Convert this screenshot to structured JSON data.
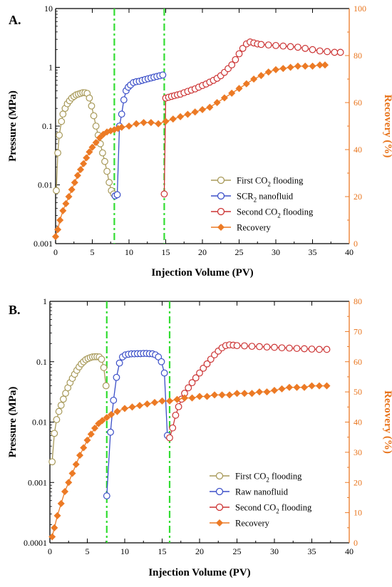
{
  "colors": {
    "first_co2": "#a89a5a",
    "nanofluid": "#3b4fc8",
    "second_co2": "#cc3333",
    "recovery": "#ec7a25",
    "divider": "#33dd33"
  },
  "chart_data": [
    {
      "type": "line",
      "panel_label": "A.",
      "xlabel": "Injection Volume (PV)",
      "ylabel_left": "Pressure (MPa)",
      "ylabel_right": "Recovery (%)",
      "xlim": [
        0,
        40
      ],
      "ylim_left": [
        0.001,
        10
      ],
      "ylim_right": [
        0,
        100
      ],
      "left_log": true,
      "x_ticks": [
        "0",
        "5",
        "10",
        "15",
        "20",
        "25",
        "30",
        "35",
        "40"
      ],
      "y_left_ticks": [
        "0.001",
        "0.01",
        "0.1",
        "1",
        "10"
      ],
      "y_right_ticks": [
        "0",
        "20",
        "40",
        "60",
        "80",
        "100"
      ],
      "dividers": [
        8.0,
        14.8
      ],
      "series": [
        {
          "name": "First CO2 flooding",
          "axis": "left",
          "marker": "circle",
          "x": [
            0.1,
            0.3,
            0.5,
            0.8,
            1.0,
            1.3,
            1.6,
            1.9,
            2.2,
            2.5,
            2.8,
            3.1,
            3.4,
            3.7,
            4.0,
            4.3,
            4.6,
            4.9,
            5.2,
            5.5,
            5.8,
            6.1,
            6.4,
            6.7,
            7.0,
            7.3,
            7.6,
            7.9
          ],
          "y": [
            0.008,
            0.035,
            0.07,
            0.12,
            0.16,
            0.2,
            0.24,
            0.27,
            0.3,
            0.32,
            0.34,
            0.35,
            0.36,
            0.37,
            0.37,
            0.36,
            0.3,
            0.22,
            0.15,
            0.1,
            0.07,
            0.05,
            0.035,
            0.025,
            0.017,
            0.011,
            0.008,
            0.007
          ]
        },
        {
          "name": "SCR2 nanofluid",
          "axis": "left",
          "marker": "circle",
          "x": [
            8.1,
            8.4,
            8.7,
            9.0,
            9.3,
            9.6,
            9.9,
            10.2,
            10.6,
            11.0,
            11.4,
            11.8,
            12.2,
            12.6,
            13.0,
            13.4,
            13.8,
            14.2,
            14.6
          ],
          "y": [
            0.0065,
            0.0068,
            0.1,
            0.16,
            0.28,
            0.4,
            0.46,
            0.5,
            0.55,
            0.57,
            0.58,
            0.6,
            0.62,
            0.64,
            0.66,
            0.68,
            0.7,
            0.72,
            0.74
          ]
        },
        {
          "name": "Second CO2 flooding",
          "axis": "left",
          "marker": "circle",
          "x": [
            14.8,
            15.0,
            15.4,
            15.8,
            16.2,
            16.6,
            17.0,
            17.5,
            18.0,
            18.5,
            19.0,
            19.5,
            20.0,
            20.5,
            21.0,
            21.5,
            22.0,
            22.5,
            23.0,
            23.5,
            24.0,
            24.5,
            25.0,
            25.5,
            26.0,
            26.5,
            27.0,
            27.5,
            28.0,
            29.0,
            30.0,
            31.0,
            32.0,
            33.0,
            34.0,
            35.0,
            36.0,
            37.0,
            38.0,
            38.8
          ],
          "y": [
            0.007,
            0.3,
            0.31,
            0.32,
            0.33,
            0.34,
            0.35,
            0.37,
            0.39,
            0.41,
            0.43,
            0.46,
            0.49,
            0.52,
            0.56,
            0.6,
            0.65,
            0.72,
            0.82,
            0.95,
            1.1,
            1.35,
            1.7,
            2.1,
            2.5,
            2.7,
            2.6,
            2.5,
            2.45,
            2.4,
            2.35,
            2.3,
            2.25,
            2.2,
            2.1,
            2.0,
            1.9,
            1.85,
            1.8,
            1.8
          ]
        },
        {
          "name": "Recovery",
          "axis": "right",
          "marker": "diamond",
          "x": [
            0,
            0.3,
            0.6,
            1.0,
            1.4,
            1.8,
            2.2,
            2.6,
            3.0,
            3.4,
            3.8,
            4.2,
            4.6,
            5.0,
            5.5,
            6.0,
            6.5,
            7.0,
            7.5,
            8.0,
            8.5,
            9.0,
            10.0,
            11.0,
            12.0,
            13.0,
            14.0,
            15.0,
            16.0,
            17.0,
            18.0,
            19.0,
            20.0,
            21.0,
            22.0,
            23.0,
            24.0,
            25.0,
            26.0,
            27.0,
            28.0,
            29.0,
            30.0,
            31.0,
            32.0,
            33.0,
            34.0,
            35.0,
            36.0,
            36.7
          ],
          "y": [
            3,
            6,
            10,
            14,
            17,
            20,
            23,
            26,
            29,
            31.5,
            34,
            36.5,
            39,
            41,
            43,
            45,
            46.5,
            47.5,
            48,
            48.5,
            49,
            49.5,
            50,
            51,
            51.5,
            51.5,
            51,
            52,
            53,
            54,
            55,
            56,
            57,
            58,
            60,
            62,
            64,
            66,
            68,
            70,
            71.5,
            73,
            74,
            74.5,
            75,
            75.5,
            75.5,
            75.5,
            76,
            76
          ]
        }
      ],
      "legend": [
        {
          "key": "first_co2",
          "marker": "circle",
          "text": "First CO",
          "sub": "2",
          "after": " flooding"
        },
        {
          "key": "nanofluid",
          "marker": "circle",
          "text": "SCR",
          "sub": "2",
          "after": " nanofluid"
        },
        {
          "key": "second_co2",
          "marker": "circle",
          "text": "Second CO",
          "sub": "2",
          "after": " flooding"
        },
        {
          "key": "recovery",
          "marker": "diamond",
          "text": "Recovery",
          "sub": "",
          "after": ""
        }
      ]
    },
    {
      "type": "line",
      "panel_label": "B.",
      "xlabel": "Injection Volume (PV)",
      "ylabel_left": "Pressure (MPa)",
      "ylabel_right": "Recovery (%)",
      "xlim": [
        0,
        40
      ],
      "ylim_left": [
        0.0001,
        1
      ],
      "ylim_right": [
        0,
        80
      ],
      "left_log": true,
      "x_ticks": [
        "0",
        "5",
        "10",
        "15",
        "20",
        "25",
        "30",
        "35",
        "40"
      ],
      "y_left_ticks": [
        "0.0001",
        "0.001",
        "0.01",
        "0.1",
        "1"
      ],
      "y_right_ticks": [
        "0",
        "10",
        "20",
        "30",
        "40",
        "50",
        "60",
        "70",
        "80"
      ],
      "dividers": [
        7.6,
        16.0
      ],
      "series": [
        {
          "name": "First CO2 flooding",
          "axis": "left",
          "marker": "circle",
          "x": [
            0.3,
            0.6,
            0.9,
            1.2,
            1.5,
            1.8,
            2.1,
            2.4,
            2.7,
            3.0,
            3.3,
            3.6,
            3.9,
            4.2,
            4.5,
            4.8,
            5.1,
            5.4,
            5.7,
            6.0,
            6.3,
            6.6,
            6.9,
            7.2,
            7.5
          ],
          "y": [
            0.0022,
            0.0065,
            0.011,
            0.015,
            0.019,
            0.024,
            0.03,
            0.037,
            0.045,
            0.053,
            0.062,
            0.072,
            0.082,
            0.092,
            0.1,
            0.108,
            0.113,
            0.117,
            0.12,
            0.121,
            0.121,
            0.12,
            0.11,
            0.08,
            0.04
          ]
        },
        {
          "name": "Raw nanofluid",
          "axis": "left",
          "marker": "circle",
          "x": [
            7.6,
            8.1,
            8.5,
            8.9,
            9.3,
            9.7,
            10.1,
            10.5,
            10.9,
            11.3,
            11.7,
            12.1,
            12.5,
            12.9,
            13.3,
            13.7,
            14.1,
            14.5,
            14.9,
            15.3,
            15.7
          ],
          "y": [
            0.0006,
            0.0068,
            0.023,
            0.055,
            0.095,
            0.12,
            0.13,
            0.133,
            0.135,
            0.135,
            0.136,
            0.136,
            0.137,
            0.137,
            0.136,
            0.135,
            0.13,
            0.12,
            0.1,
            0.065,
            0.006
          ]
        },
        {
          "name": "Second CO2 flooding",
          "axis": "left",
          "marker": "circle",
          "x": [
            16.0,
            16.4,
            16.8,
            17.2,
            17.6,
            18.0,
            18.5,
            19.0,
            19.5,
            20.0,
            20.5,
            21.0,
            21.5,
            22.0,
            22.5,
            23.0,
            23.5,
            24.0,
            24.5,
            25.0,
            26.0,
            27.0,
            28.0,
            29.0,
            30.0,
            31.0,
            32.0,
            33.0,
            34.0,
            35.0,
            36.0,
            37.0
          ],
          "y": [
            0.0055,
            0.008,
            0.013,
            0.018,
            0.024,
            0.03,
            0.037,
            0.045,
            0.054,
            0.065,
            0.078,
            0.092,
            0.11,
            0.13,
            0.15,
            0.17,
            0.185,
            0.19,
            0.188,
            0.185,
            0.183,
            0.18,
            0.178,
            0.175,
            0.173,
            0.17,
            0.168,
            0.166,
            0.164,
            0.162,
            0.16,
            0.16
          ]
        },
        {
          "name": "Recovery",
          "axis": "right",
          "marker": "diamond",
          "x": [
            0.3,
            0.6,
            1.0,
            1.5,
            2.0,
            2.5,
            3.0,
            3.5,
            4.0,
            4.5,
            5.0,
            5.5,
            6.0,
            6.5,
            7.0,
            7.6,
            8.2,
            9.0,
            10.0,
            11.0,
            12.0,
            13.0,
            14.0,
            15.0,
            16.0,
            17.0,
            18.0,
            19.0,
            20.0,
            21.0,
            22.0,
            23.0,
            24.0,
            25.0,
            26.0,
            27.0,
            28.0,
            29.0,
            30.0,
            31.0,
            32.0,
            33.0,
            34.0,
            35.0,
            36.0,
            37.0
          ],
          "y": [
            2,
            5,
            9,
            13,
            17,
            20,
            23,
            26,
            29,
            31.5,
            34,
            36,
            38,
            39.5,
            40.5,
            41.5,
            42.5,
            43.5,
            44.5,
            45,
            45.5,
            46,
            46.5,
            47,
            47,
            47.5,
            48,
            48,
            48.5,
            48.5,
            49,
            49,
            49,
            49.5,
            49.5,
            49.5,
            50,
            50,
            50.5,
            51,
            51.5,
            51.5,
            51.5,
            52,
            52,
            52
          ]
        }
      ],
      "legend": [
        {
          "key": "first_co2",
          "marker": "circle",
          "text": "First CO",
          "sub": "2",
          "after": " flooding"
        },
        {
          "key": "nanofluid",
          "marker": "circle",
          "text": "Raw nanofluid",
          "sub": "",
          "after": ""
        },
        {
          "key": "second_co2",
          "marker": "circle",
          "text": "Second CO",
          "sub": "2",
          "after": " flooding"
        },
        {
          "key": "recovery",
          "marker": "diamond",
          "text": "Recovery",
          "sub": "",
          "after": ""
        }
      ]
    }
  ]
}
